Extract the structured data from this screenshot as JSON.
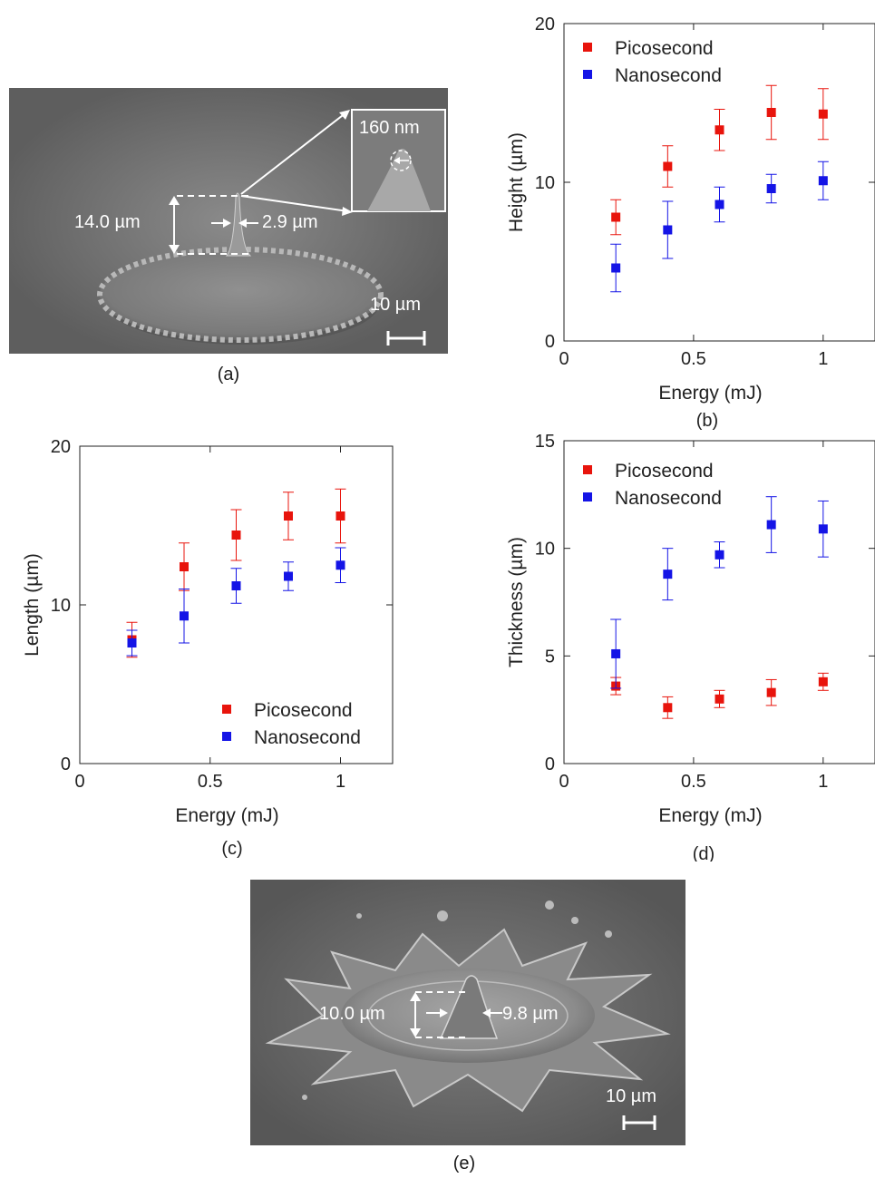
{
  "micrographs": {
    "a": {
      "caption": "(a)",
      "height_label": "14.0 µm",
      "width_label": "2.9 µm",
      "inset_label": "160 nm",
      "scale_label": "10 µm"
    },
    "e": {
      "caption": "(e)",
      "height_label": "10.0 µm",
      "width_label": "9.8 µm",
      "scale_label": "10 µm"
    }
  },
  "chart_data": [
    {
      "id": "b",
      "caption": "(b)",
      "type": "scatter",
      "xlabel": "Energy (mJ)",
      "ylabel": "Height (µm)",
      "xlim": [
        0,
        1.2
      ],
      "ylim": [
        0,
        20
      ],
      "xticks": [
        0,
        0.5,
        1
      ],
      "yticks": [
        0,
        10,
        20
      ],
      "legend_position": "top-left",
      "series": [
        {
          "name": "Picosecond",
          "color": "#e8140c",
          "x": [
            0.2,
            0.4,
            0.6,
            0.8,
            1.0
          ],
          "y": [
            7.8,
            11.0,
            13.3,
            14.4,
            14.3
          ],
          "err": [
            1.1,
            1.3,
            1.3,
            1.7,
            1.6
          ]
        },
        {
          "name": "Nanosecond",
          "color": "#1414e6",
          "x": [
            0.2,
            0.4,
            0.6,
            0.8,
            1.0
          ],
          "y": [
            4.6,
            7.0,
            8.6,
            9.6,
            10.1
          ],
          "err": [
            1.5,
            1.8,
            1.1,
            0.9,
            1.2
          ]
        }
      ]
    },
    {
      "id": "c",
      "caption": "(c)",
      "type": "scatter",
      "xlabel": "Energy (mJ)",
      "ylabel": "Length (µm)",
      "xlim": [
        0,
        1.2
      ],
      "ylim": [
        0,
        20
      ],
      "xticks": [
        0,
        0.5,
        1
      ],
      "yticks": [
        0,
        10,
        20
      ],
      "legend_position": "bottom-right",
      "series": [
        {
          "name": "Picosecond",
          "color": "#e8140c",
          "x": [
            0.2,
            0.4,
            0.6,
            0.8,
            1.0
          ],
          "y": [
            7.8,
            12.4,
            14.4,
            15.6,
            15.6
          ],
          "err": [
            1.1,
            1.5,
            1.6,
            1.5,
            1.7
          ]
        },
        {
          "name": "Nanosecond",
          "color": "#1414e6",
          "x": [
            0.2,
            0.4,
            0.6,
            0.8,
            1.0
          ],
          "y": [
            7.6,
            9.3,
            11.2,
            11.8,
            12.5
          ],
          "err": [
            0.8,
            1.7,
            1.1,
            0.9,
            1.1
          ]
        }
      ]
    },
    {
      "id": "d",
      "caption": "(d)",
      "type": "scatter",
      "xlabel": "Energy (mJ)",
      "ylabel": "Thickness (µm)",
      "xlim": [
        0,
        1.2
      ],
      "ylim": [
        0,
        15
      ],
      "xticks": [
        0,
        0.5,
        1
      ],
      "yticks": [
        0,
        5,
        10,
        15
      ],
      "legend_position": "top-left",
      "series": [
        {
          "name": "Picosecond",
          "color": "#e8140c",
          "x": [
            0.2,
            0.4,
            0.6,
            0.8,
            1.0
          ],
          "y": [
            3.6,
            2.6,
            3.0,
            3.3,
            3.8
          ],
          "err": [
            0.4,
            0.5,
            0.4,
            0.6,
            0.4
          ]
        },
        {
          "name": "Nanosecond",
          "color": "#1414e6",
          "x": [
            0.2,
            0.4,
            0.6,
            0.8,
            1.0
          ],
          "y": [
            5.1,
            8.8,
            9.7,
            11.1,
            10.9
          ],
          "err": [
            1.6,
            1.2,
            0.6,
            1.3,
            1.3
          ]
        }
      ]
    }
  ]
}
